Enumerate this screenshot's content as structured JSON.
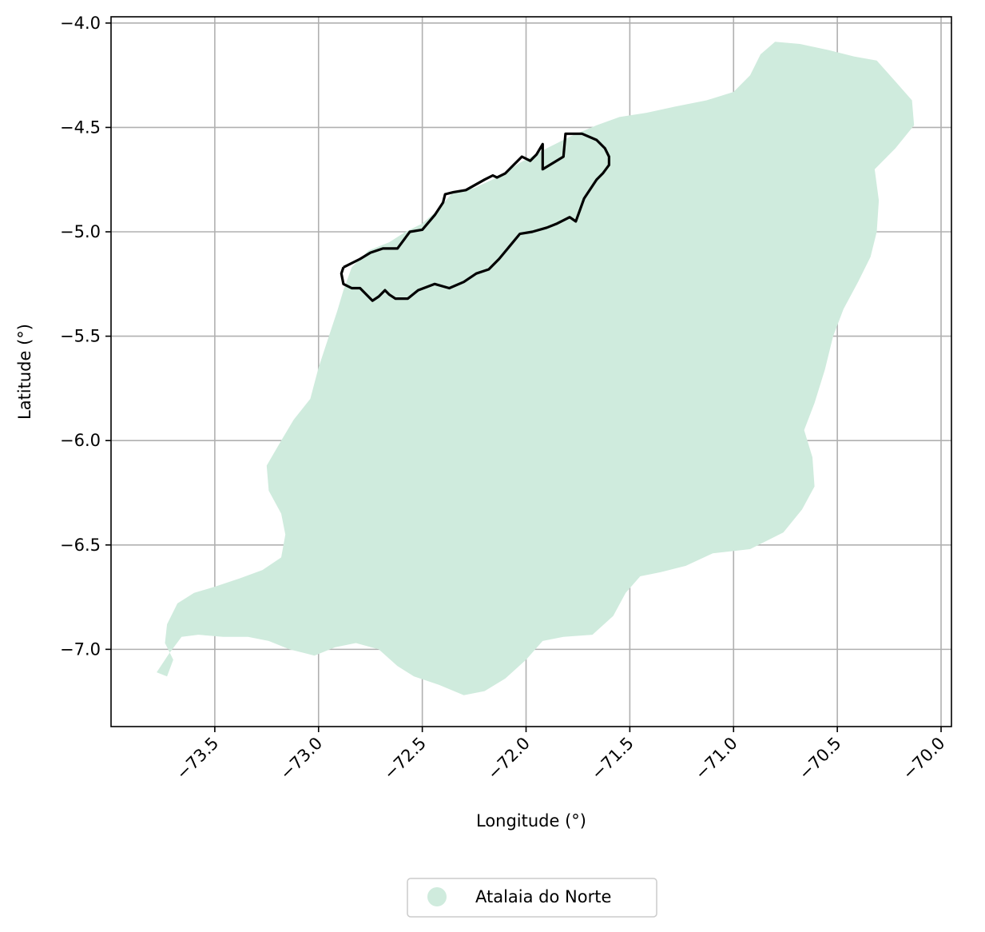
{
  "chart_data": {
    "type": "map",
    "xlabel": "Longitude (°)",
    "ylabel": "Latitude (°)",
    "xlim": [
      -74.0,
      -69.95
    ],
    "ylim": [
      -7.37,
      -3.97
    ],
    "grid": true,
    "xticks": [
      -73.5,
      -73.0,
      -72.5,
      -72.0,
      -71.5,
      -71.0,
      -70.5,
      -70.0
    ],
    "yticks": [
      -4.0,
      -4.5,
      -5.0,
      -5.5,
      -6.0,
      -6.5,
      -7.0
    ],
    "xtick_labels": [
      "−73.5",
      "−73.0",
      "−72.5",
      "−72.0",
      "−71.5",
      "−71.0",
      "−70.5",
      "−70.0"
    ],
    "ytick_labels": [
      "−4.0",
      "−4.5",
      "−5.0",
      "−5.5",
      "−6.0",
      "−6.5",
      "−7.0"
    ],
    "legend_placement": "bottom-center",
    "region_color": "#cfebdd",
    "outline_color": "#000000",
    "series": [
      {
        "name": "Atalaia do Norte",
        "kind": "filled-region",
        "lonlat": [
          [
            -73.78,
            -7.11
          ],
          [
            -73.73,
            -7.13
          ],
          [
            -73.7,
            -7.05
          ],
          [
            -73.74,
            -6.97
          ],
          [
            -73.73,
            -6.88
          ],
          [
            -73.68,
            -6.78
          ],
          [
            -73.6,
            -6.73
          ],
          [
            -73.5,
            -6.7
          ],
          [
            -73.38,
            -6.66
          ],
          [
            -73.27,
            -6.62
          ],
          [
            -73.18,
            -6.56
          ],
          [
            -73.16,
            -6.45
          ],
          [
            -73.18,
            -6.35
          ],
          [
            -73.24,
            -6.24
          ],
          [
            -73.25,
            -6.12
          ],
          [
            -73.18,
            -6.0
          ],
          [
            -73.12,
            -5.9
          ],
          [
            -73.04,
            -5.8
          ],
          [
            -73.0,
            -5.65
          ],
          [
            -72.95,
            -5.5
          ],
          [
            -72.91,
            -5.38
          ],
          [
            -72.88,
            -5.28
          ],
          [
            -72.84,
            -5.17
          ],
          [
            -72.76,
            -5.09
          ],
          [
            -72.66,
            -5.05
          ],
          [
            -72.58,
            -5.0
          ],
          [
            -72.5,
            -4.96
          ],
          [
            -72.43,
            -4.9
          ],
          [
            -72.36,
            -4.82
          ],
          [
            -72.25,
            -4.79
          ],
          [
            -72.14,
            -4.74
          ],
          [
            -72.03,
            -4.67
          ],
          [
            -71.9,
            -4.6
          ],
          [
            -71.78,
            -4.54
          ],
          [
            -71.66,
            -4.49
          ],
          [
            -71.55,
            -4.45
          ],
          [
            -71.42,
            -4.43
          ],
          [
            -71.28,
            -4.4
          ],
          [
            -71.13,
            -4.37
          ],
          [
            -71.0,
            -4.33
          ],
          [
            -70.92,
            -4.25
          ],
          [
            -70.87,
            -4.15
          ],
          [
            -70.8,
            -4.09
          ],
          [
            -70.68,
            -4.1
          ],
          [
            -70.54,
            -4.13
          ],
          [
            -70.42,
            -4.16
          ],
          [
            -70.31,
            -4.18
          ],
          [
            -70.22,
            -4.28
          ],
          [
            -70.14,
            -4.37
          ],
          [
            -70.13,
            -4.49
          ],
          [
            -70.22,
            -4.6
          ],
          [
            -70.32,
            -4.7
          ],
          [
            -70.3,
            -4.85
          ],
          [
            -70.31,
            -5.0
          ],
          [
            -70.34,
            -5.12
          ],
          [
            -70.4,
            -5.24
          ],
          [
            -70.47,
            -5.37
          ],
          [
            -70.52,
            -5.5
          ],
          [
            -70.56,
            -5.66
          ],
          [
            -70.61,
            -5.82
          ],
          [
            -70.66,
            -5.95
          ],
          [
            -70.62,
            -6.08
          ],
          [
            -70.61,
            -6.22
          ],
          [
            -70.67,
            -6.33
          ],
          [
            -70.76,
            -6.44
          ],
          [
            -70.92,
            -6.52
          ],
          [
            -71.1,
            -6.54
          ],
          [
            -71.23,
            -6.6
          ],
          [
            -71.35,
            -6.63
          ],
          [
            -71.45,
            -6.65
          ],
          [
            -71.52,
            -6.73
          ],
          [
            -71.58,
            -6.84
          ],
          [
            -71.68,
            -6.93
          ],
          [
            -71.82,
            -6.94
          ],
          [
            -71.92,
            -6.96
          ],
          [
            -72.0,
            -7.05
          ],
          [
            -72.1,
            -7.14
          ],
          [
            -72.2,
            -7.2
          ],
          [
            -72.3,
            -7.22
          ],
          [
            -72.42,
            -7.17
          ],
          [
            -72.54,
            -7.13
          ],
          [
            -72.62,
            -7.08
          ],
          [
            -72.71,
            -7.0
          ],
          [
            -72.82,
            -6.97
          ],
          [
            -72.92,
            -6.99
          ],
          [
            -73.02,
            -7.03
          ],
          [
            -73.14,
            -7.0
          ],
          [
            -73.24,
            -6.96
          ],
          [
            -73.34,
            -6.94
          ],
          [
            -73.46,
            -6.94
          ],
          [
            -73.58,
            -6.93
          ],
          [
            -73.66,
            -6.94
          ],
          [
            -73.72,
            -7.02
          ],
          [
            -73.78,
            -7.11
          ]
        ]
      },
      {
        "kind": "outline",
        "lonlat": [
          [
            -72.88,
            -5.17
          ],
          [
            -72.8,
            -5.13
          ],
          [
            -72.75,
            -5.1
          ],
          [
            -72.69,
            -5.08
          ],
          [
            -72.62,
            -5.08
          ],
          [
            -72.56,
            -5.0
          ],
          [
            -72.5,
            -4.99
          ],
          [
            -72.44,
            -4.92
          ],
          [
            -72.4,
            -4.86
          ],
          [
            -72.39,
            -4.82
          ],
          [
            -72.35,
            -4.81
          ],
          [
            -72.29,
            -4.8
          ],
          [
            -72.2,
            -4.75
          ],
          [
            -72.16,
            -4.73
          ],
          [
            -72.14,
            -4.74
          ],
          [
            -72.1,
            -4.72
          ],
          [
            -72.06,
            -4.68
          ],
          [
            -72.02,
            -4.64
          ],
          [
            -71.98,
            -4.66
          ],
          [
            -71.95,
            -4.63
          ],
          [
            -71.92,
            -4.58
          ],
          [
            -71.92,
            -4.7
          ],
          [
            -71.82,
            -4.64
          ],
          [
            -71.81,
            -4.53
          ],
          [
            -71.73,
            -4.53
          ],
          [
            -71.66,
            -4.56
          ],
          [
            -71.62,
            -4.6
          ],
          [
            -71.6,
            -4.64
          ],
          [
            -71.6,
            -4.68
          ],
          [
            -71.63,
            -4.72
          ],
          [
            -71.66,
            -4.75
          ],
          [
            -71.72,
            -4.84
          ],
          [
            -71.76,
            -4.95
          ],
          [
            -71.79,
            -4.93
          ],
          [
            -71.85,
            -4.96
          ],
          [
            -71.9,
            -4.98
          ],
          [
            -71.97,
            -5.0
          ],
          [
            -72.03,
            -5.01
          ],
          [
            -72.08,
            -5.07
          ],
          [
            -72.13,
            -5.13
          ],
          [
            -72.18,
            -5.18
          ],
          [
            -72.24,
            -5.2
          ],
          [
            -72.3,
            -5.24
          ],
          [
            -72.37,
            -5.27
          ],
          [
            -72.44,
            -5.25
          ],
          [
            -72.52,
            -5.28
          ],
          [
            -72.57,
            -5.32
          ],
          [
            -72.63,
            -5.32
          ],
          [
            -72.66,
            -5.3
          ],
          [
            -72.68,
            -5.28
          ],
          [
            -72.71,
            -5.31
          ],
          [
            -72.74,
            -5.33
          ],
          [
            -72.77,
            -5.3
          ],
          [
            -72.8,
            -5.27
          ],
          [
            -72.84,
            -5.27
          ],
          [
            -72.88,
            -5.25
          ],
          [
            -72.89,
            -5.2
          ],
          [
            -72.88,
            -5.17
          ]
        ]
      }
    ]
  },
  "legend": {
    "label": "Atalaia do Norte"
  }
}
